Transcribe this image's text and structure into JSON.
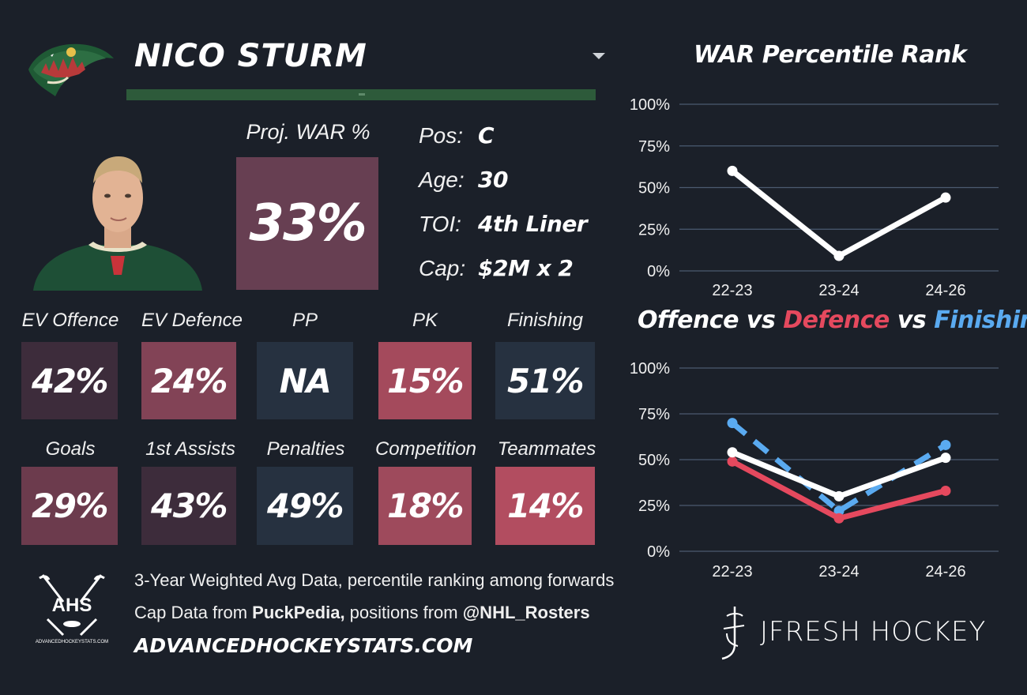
{
  "player": {
    "name": "NICO STURM",
    "proj_war_label": "Proj. WAR %",
    "proj_war_value": "33%",
    "info": [
      {
        "label": "Pos:",
        "value": "C"
      },
      {
        "label": "Age:",
        "value": "30"
      },
      {
        "label": "TOI:",
        "value": "4th Liner"
      },
      {
        "label": "Cap:",
        "value": "$2M x 2"
      }
    ]
  },
  "tiles_row1": [
    {
      "label": "EV Offence",
      "value": "42%",
      "color": "#3d2c3b"
    },
    {
      "label": "EV Defence",
      "value": "24%",
      "color": "#824356"
    },
    {
      "label": "PP",
      "value": "NA",
      "color": "#263140"
    },
    {
      "label": "PK",
      "value": "15%",
      "color": "#a44a5c"
    },
    {
      "label": "Finishing",
      "value": "51%",
      "color": "#263140"
    }
  ],
  "tiles_row2": [
    {
      "label": "Goals",
      "value": "29%",
      "color": "#6c3b4d"
    },
    {
      "label": "1st Assists",
      "value": "43%",
      "color": "#3d2c3b"
    },
    {
      "label": "Penalties",
      "value": "49%",
      "color": "#263140"
    },
    {
      "label": "Competition",
      "value": "18%",
      "color": "#9e4a5c"
    },
    {
      "label": "Teammates",
      "value": "14%",
      "color": "#b24d60"
    }
  ],
  "footer": {
    "line1": "3-Year Weighted Avg Data, percentile ranking among forwards",
    "line2_prefix": "Cap Data from ",
    "line2_bold1": "PuckPedia,",
    "line2_mid": " positions from ",
    "line2_bold2": "@NHL_Rosters",
    "site": "ADVANCEDHOCKEYSTATS.COM",
    "ahs_logo_text": "AHS",
    "ahs_logo_sub": "ADVANCEDHOCKEYSTATS.COM",
    "brand": "JFRESH HOCKEY"
  },
  "chart_data": [
    {
      "type": "line",
      "title": "WAR Percentile Rank",
      "categories": [
        "22-23",
        "23-24",
        "24-26"
      ],
      "series": [
        {
          "values": [
            60,
            9,
            44
          ],
          "color": "#ffffff",
          "dashed": false
        }
      ],
      "ylim": [
        0,
        100
      ],
      "yticks": [
        "0%",
        "25%",
        "50%",
        "75%",
        "100%"
      ],
      "grid": true
    },
    {
      "type": "line",
      "title_parts": [
        {
          "text": "Offence",
          "color": "#ffffff"
        },
        {
          "text": " vs ",
          "color": "#ffffff"
        },
        {
          "text": "Defence",
          "color": "#e5495e"
        },
        {
          "text": " vs ",
          "color": "#ffffff"
        },
        {
          "text": "Finishing",
          "color": "#5aaaf0"
        }
      ],
      "categories": [
        "22-23",
        "23-24",
        "24-26"
      ],
      "series": [
        {
          "name": "Finishing",
          "values": [
            70,
            22,
            58
          ],
          "color": "#5aaaf0",
          "dashed": true
        },
        {
          "name": "Defence",
          "values": [
            49,
            18,
            33
          ],
          "color": "#e5495e",
          "dashed": false
        },
        {
          "name": "Offence",
          "values": [
            54,
            30,
            51
          ],
          "color": "#ffffff",
          "dashed": false
        }
      ],
      "ylim": [
        0,
        100
      ],
      "yticks": [
        "0%",
        "25%",
        "50%",
        "75%",
        "100%"
      ],
      "grid": true
    }
  ],
  "colors": {
    "background": "#1b2029",
    "team_green": "#2d5a3a",
    "proj_box": "#673f52"
  }
}
